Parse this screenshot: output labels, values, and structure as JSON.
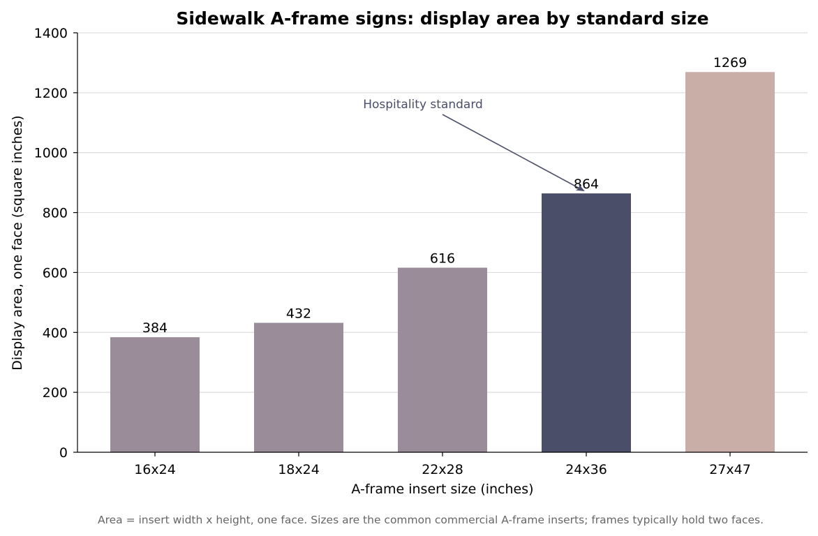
{
  "chart_data": {
    "type": "bar",
    "title": "Sidewalk A-frame signs: display area by standard size",
    "xlabel": "A-frame insert size (inches)",
    "ylabel": "Display area, one face (square inches)",
    "categories": [
      "16x24",
      "18x24",
      "22x28",
      "24x36",
      "27x47"
    ],
    "values": [
      384,
      432,
      616,
      864,
      1269
    ],
    "value_labels": [
      "384",
      "432",
      "616",
      "864",
      "1269"
    ],
    "bar_colors": [
      "#9a8c98",
      "#9a8c98",
      "#9a8c98",
      "#4a4e69",
      "#c9ada7"
    ],
    "ylim": [
      0,
      1400
    ],
    "yticks": [
      0,
      200,
      400,
      600,
      800,
      1000,
      1200,
      1400
    ],
    "grid": "horizontal",
    "annotation": {
      "text": "Hospitality standard",
      "target_category": "24x36",
      "target_value": 864,
      "color": "#4a4e69"
    },
    "footnote": "Area = insert width x height, one face. Sizes are the common commercial A-frame inserts; frames typically hold two faces."
  }
}
